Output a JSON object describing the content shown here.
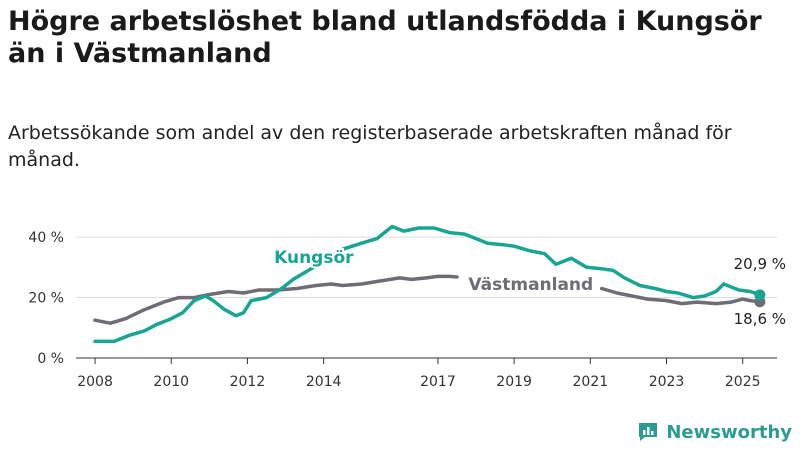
{
  "title": "Högre arbetslöshet bland utlandsfödda i Kungsör än i Västmanland",
  "subtitle": "Arbetssökande som andel av den registerbaserade arbetskraften månad för månad.",
  "brand": "Newsworthy",
  "colors": {
    "kungsor": "#18a593",
    "vastmanland": "#6f6c76",
    "grid": "#dddddd",
    "axis": "#333333"
  },
  "chart_data": {
    "type": "line",
    "xlabel": "",
    "ylabel": "",
    "xlim": [
      2007.5,
      2025.9
    ],
    "ylim": [
      0,
      45
    ],
    "x_ticks": [
      2008,
      2010,
      2012,
      2014,
      2017,
      2019,
      2021,
      2023,
      2025
    ],
    "y_ticks": [
      0,
      20,
      40
    ],
    "y_tick_labels": [
      "0 %",
      "20 %",
      "40 %"
    ],
    "series": [
      {
        "name": "Kungsör",
        "end_label": "20,9 %",
        "x": [
          2008.0,
          2008.5,
          2008.9,
          2009.3,
          2009.6,
          2010.0,
          2010.3,
          2010.6,
          2010.9,
          2011.1,
          2011.4,
          2011.7,
          2011.9,
          2012.1,
          2012.5,
          2012.9,
          2013.2,
          2013.6,
          2014.0,
          2014.5,
          2015.0,
          2015.4,
          2015.8,
          2016.1,
          2016.5,
          2016.9,
          2017.3,
          2017.7,
          2018.0,
          2018.3,
          2018.7,
          2019.0,
          2019.4,
          2019.8,
          2020.1,
          2020.5,
          2020.9,
          2021.3,
          2021.6,
          2021.9,
          2022.3,
          2022.7,
          2023.0,
          2023.3,
          2023.7,
          2024.0,
          2024.3,
          2024.5,
          2024.9,
          2025.2,
          2025.45
        ],
        "values": [
          5.5,
          5.5,
          7.5,
          9,
          11,
          13,
          15,
          19,
          20.5,
          19,
          16,
          14,
          15,
          19,
          20,
          23,
          26,
          29,
          32,
          36,
          38,
          39.5,
          43.5,
          42,
          43,
          43,
          41.5,
          41,
          39.5,
          38,
          37.5,
          37,
          35.5,
          34.5,
          31,
          33,
          30,
          29.5,
          29,
          26.5,
          24,
          23,
          22,
          21.5,
          20,
          20.5,
          22,
          24.5,
          22.5,
          22,
          20.9
        ]
      },
      {
        "name": "Västmanland",
        "end_label": "18,6 %",
        "x": [
          2008.0,
          2008.4,
          2008.8,
          2009.3,
          2009.8,
          2010.2,
          2010.6,
          2011.0,
          2011.5,
          2011.9,
          2012.3,
          2012.8,
          2013.3,
          2013.8,
          2014.2,
          2014.5,
          2015.0,
          2015.5,
          2016.0,
          2016.3,
          2016.7,
          2017.0,
          2017.3,
          2017.5,
          2021.3,
          2021.7,
          2022.1,
          2022.5,
          2023.0,
          2023.4,
          2023.8,
          2024.3,
          2024.7,
          2025.0,
          2025.2,
          2025.45
        ],
        "values": [
          12.5,
          11.5,
          13,
          16,
          18.5,
          20,
          20,
          21,
          22,
          21.5,
          22.5,
          22.5,
          23,
          24,
          24.5,
          24,
          24.5,
          25.5,
          26.5,
          26,
          26.5,
          27,
          27,
          26.8,
          23,
          21.5,
          20.5,
          19.5,
          19,
          18,
          18.5,
          18,
          18.5,
          19.5,
          19,
          18.6
        ]
      }
    ]
  }
}
